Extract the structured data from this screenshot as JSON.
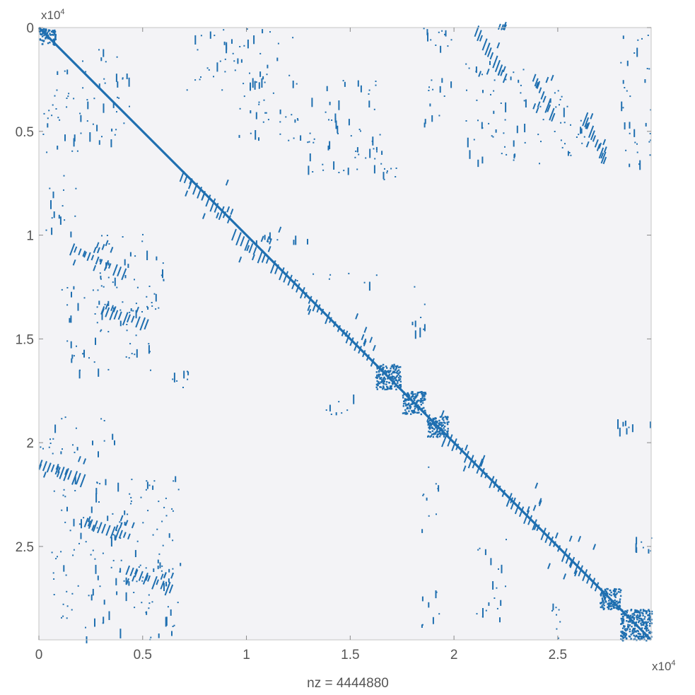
{
  "chart_data": {
    "type": "scatter",
    "subtype": "sparsity-pattern",
    "xlabel": "nz = 4444880",
    "ylabel": "",
    "x_multiplier": "x10",
    "x_multiplier_exp": "4",
    "y_multiplier": "x10",
    "y_multiplier_exp": "4",
    "xlim": [
      0,
      29500
    ],
    "ylim": [
      0,
      29500
    ],
    "y_reversed": true,
    "grid": false,
    "marker_color": "#1f6fb0",
    "plot_background": "#f3f3f6",
    "x_ticks": [
      {
        "value": 0,
        "label": "0"
      },
      {
        "value": 5000,
        "label": "0.5"
      },
      {
        "value": 10000,
        "label": "1"
      },
      {
        "value": 15000,
        "label": "1.5"
      },
      {
        "value": 20000,
        "label": "2"
      },
      {
        "value": 25000,
        "label": "2.5"
      }
    ],
    "y_ticks": [
      {
        "value": 0,
        "label": "0"
      },
      {
        "value": 5000,
        "label": "0.5"
      },
      {
        "value": 10000,
        "label": "1"
      },
      {
        "value": 15000,
        "label": "1.5"
      },
      {
        "value": 20000,
        "label": "2"
      },
      {
        "value": 25000,
        "label": "2.5"
      }
    ],
    "diagonal": {
      "from": 0,
      "to": 29500
    },
    "dense_blocks": [
      {
        "x": [
          0,
          800
        ],
        "y": [
          0,
          800
        ]
      },
      {
        "x": [
          16200,
          17400
        ],
        "y": [
          16200,
          17400
        ]
      },
      {
        "x": [
          17500,
          18600
        ],
        "y": [
          17500,
          18600
        ]
      },
      {
        "x": [
          27000,
          28000
        ],
        "y": [
          27000,
          28000
        ]
      },
      {
        "x": [
          28000,
          29500
        ],
        "y": [
          28000,
          29500
        ]
      },
      {
        "x": [
          18700,
          19700
        ],
        "y": [
          18700,
          19700
        ]
      }
    ],
    "hatched_blocks": [
      {
        "x": [
          6800,
          9300
        ],
        "y": [
          7000,
          9300
        ]
      },
      {
        "x": [
          9300,
          12000
        ],
        "y": [
          9800,
          12000
        ]
      },
      {
        "x": [
          12000,
          14000
        ],
        "y": [
          12000,
          14000
        ]
      },
      {
        "x": [
          14000,
          16200
        ],
        "y": [
          14000,
          16200
        ]
      },
      {
        "x": [
          18700,
          21500
        ],
        "y": [
          18700,
          21500
        ]
      },
      {
        "x": [
          21500,
          24200
        ],
        "y": [
          21500,
          24200
        ]
      },
      {
        "x": [
          24200,
          27000
        ],
        "y": [
          24200,
          27000
        ]
      },
      {
        "x": [
          1500,
          4200
        ],
        "y": [
          10500,
          11800
        ]
      },
      {
        "x": [
          0,
          2200
        ],
        "y": [
          20900,
          21700
        ]
      },
      {
        "x": [
          2200,
          4500
        ],
        "y": [
          23700,
          24500
        ]
      },
      {
        "x": [
          4200,
          6500
        ],
        "y": [
          26000,
          27000
        ]
      },
      {
        "x": [
          3000,
          5300
        ],
        "y": [
          13500,
          14200
        ]
      },
      {
        "x": [
          21000,
          22500
        ],
        "y": [
          0,
          2500
        ]
      },
      {
        "x": [
          23800,
          24800
        ],
        "y": [
          2300,
          4400
        ]
      },
      {
        "x": [
          26200,
          27300
        ],
        "y": [
          4200,
          6500
        ]
      }
    ],
    "scatter_blocks": [
      {
        "x": [
          0,
          2000
        ],
        "y": [
          2000,
          6500
        ]
      },
      {
        "x": [
          2000,
          4500
        ],
        "y": [
          1000,
          5500
        ]
      },
      {
        "x": [
          7000,
          9500
        ],
        "y": [
          0,
          3000
        ]
      },
      {
        "x": [
          9500,
          12500
        ],
        "y": [
          0,
          5500
        ]
      },
      {
        "x": [
          12500,
          16500
        ],
        "y": [
          2500,
          7000
        ]
      },
      {
        "x": [
          18500,
          20000
        ],
        "y": [
          0,
          5000
        ]
      },
      {
        "x": [
          20500,
          23500
        ],
        "y": [
          1500,
          6500
        ]
      },
      {
        "x": [
          24000,
          26500
        ],
        "y": [
          3000,
          6800
        ]
      },
      {
        "x": [
          28000,
          29500
        ],
        "y": [
          0,
          6800
        ]
      },
      {
        "x": [
          200,
          1800
        ],
        "y": [
          6900,
          10000
        ]
      },
      {
        "x": [
          2800,
          6200
        ],
        "y": [
          9900,
          12500
        ]
      },
      {
        "x": [
          1000,
          5800
        ],
        "y": [
          12000,
          16500
        ]
      },
      {
        "x": [
          6400,
          7200
        ],
        "y": [
          16500,
          17400
        ]
      },
      {
        "x": [
          0,
          3800
        ],
        "y": [
          18700,
          20500
        ]
      },
      {
        "x": [
          600,
          6800
        ],
        "y": [
          21600,
          29500
        ]
      },
      {
        "x": [
          13800,
          15200
        ],
        "y": [
          17200,
          18700
        ]
      },
      {
        "x": [
          18400,
          19300
        ],
        "y": [
          21000,
          24200
        ]
      },
      {
        "x": [
          18300,
          19300
        ],
        "y": [
          27000,
          28800
        ]
      },
      {
        "x": [
          21000,
          22500
        ],
        "y": [
          24600,
          28500
        ]
      },
      {
        "x": [
          24300,
          25100
        ],
        "y": [
          27600,
          29500
        ]
      },
      {
        "x": [
          27000,
          29500
        ],
        "y": [
          18700,
          19300
        ]
      },
      {
        "x": [
          28500,
          29500
        ],
        "y": [
          24300,
          25200
        ]
      },
      {
        "x": [
          17500,
          18700
        ],
        "y": [
          12400,
          14600
        ]
      },
      {
        "x": [
          9800,
          14000
        ],
        "y": [
          9800,
          10300
        ]
      },
      {
        "x": [
          12000,
          16500
        ],
        "y": [
          11800,
          12300
        ]
      },
      {
        "x": [
          16200,
          17300
        ],
        "y": [
          6700,
          7400
        ]
      }
    ]
  }
}
